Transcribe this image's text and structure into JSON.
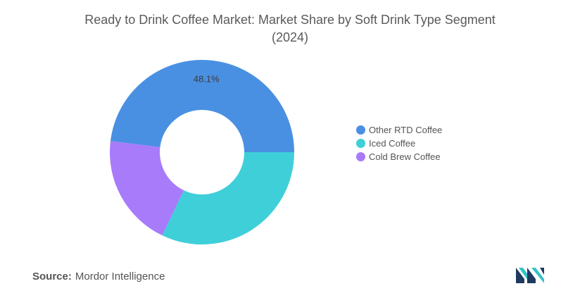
{
  "title_line1": "Ready to Drink Coffee Market: Market Share by Soft Drink Type Segment",
  "title_line2": "(2024)",
  "chart_data": {
    "type": "pie",
    "donut": true,
    "title": "Ready to Drink Coffee Market: Market Share by Soft Drink Type Segment (2024)",
    "categories": [
      "Other RTD Coffee",
      "Iced Coffee",
      "Cold Brew Coffee"
    ],
    "values": [
      48.1,
      32.1,
      19.8
    ],
    "colors": [
      "#4a90e2",
      "#3ecfd9",
      "#a77bfa"
    ],
    "data_labels": [
      "48.1%",
      "",
      ""
    ],
    "legend_position": "right"
  },
  "source": {
    "label": "Source:",
    "value": "Mordor Intelligence"
  },
  "logo": {
    "icon": "mordor-intelligence-logo",
    "colors": [
      "#1f3a5f",
      "#33c3c8"
    ]
  }
}
